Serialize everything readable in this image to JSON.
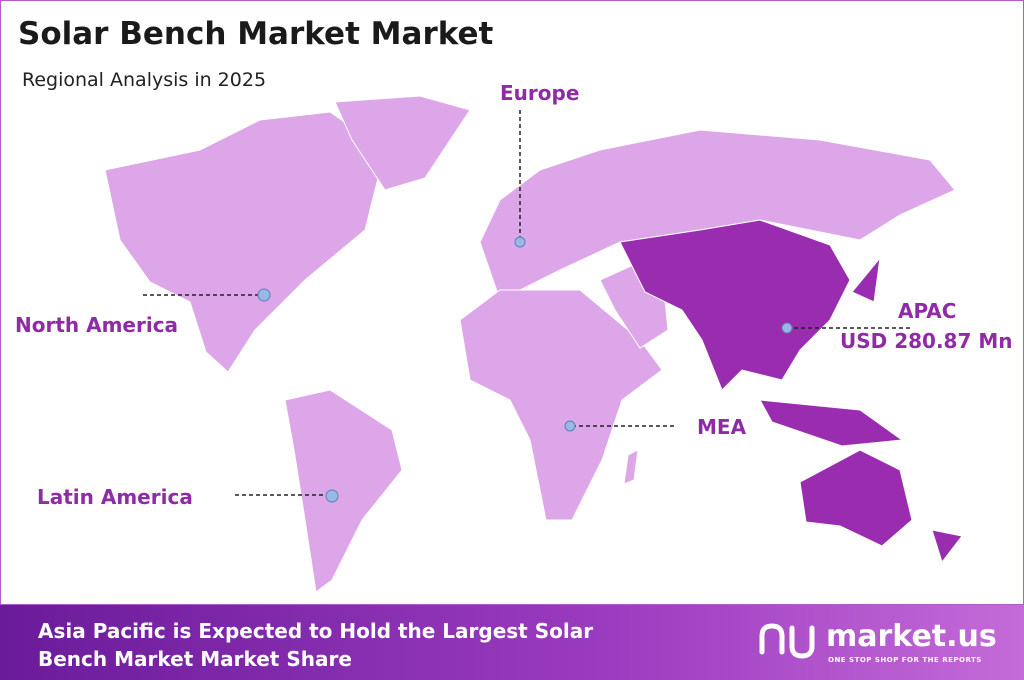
{
  "header": {
    "title": "Solar Bench Market Market",
    "subtitle": "Regional Analysis in 2025"
  },
  "regions": [
    {
      "label": "Europe"
    },
    {
      "label": "North America"
    },
    {
      "label": "APAC",
      "value": "USD 280.87 Mn"
    },
    {
      "label": "MEA"
    },
    {
      "label": "Latin America"
    }
  ],
  "footer": {
    "lines": [
      "Asia Pacific is Expected to Hold the Largest Solar",
      "Bench Market Market Share"
    ],
    "logo": "market.us",
    "tagline": "ONE STOP SHOP FOR THE REPORTS"
  }
}
